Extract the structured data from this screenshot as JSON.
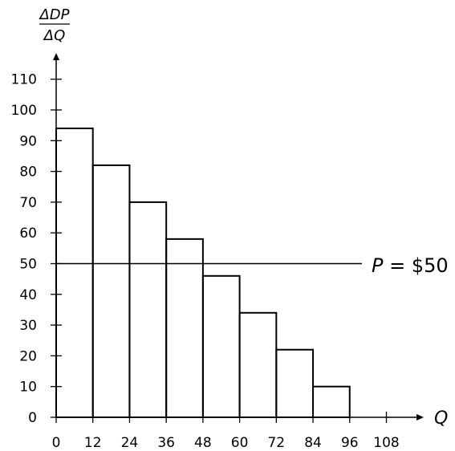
{
  "chart_data": {
    "type": "bar",
    "ylabel_numerator": "ΔDP",
    "ylabel_denominator": "ΔQ",
    "xlabel": "Q",
    "x_ticks": [
      0,
      12,
      24,
      36,
      48,
      60,
      72,
      84,
      96,
      108
    ],
    "y_ticks": [
      0,
      10,
      20,
      30,
      40,
      50,
      60,
      70,
      80,
      90,
      100,
      110
    ],
    "xlim": [
      0,
      120
    ],
    "ylim": [
      0,
      117
    ],
    "bar_width": 12,
    "bars": [
      {
        "x_start": 0,
        "value": 94
      },
      {
        "x_start": 12,
        "value": 82
      },
      {
        "x_start": 24,
        "value": 70
      },
      {
        "x_start": 36,
        "value": 58
      },
      {
        "x_start": 48,
        "value": 46
      },
      {
        "x_start": 60,
        "value": 34
      },
      {
        "x_start": 72,
        "value": 22
      },
      {
        "x_start": 84,
        "value": 10
      }
    ],
    "reference_line": {
      "value": 50,
      "x_end": 100,
      "label_prefix": "P = ",
      "label_value": "$50"
    },
    "grid": false,
    "legend": "none"
  }
}
